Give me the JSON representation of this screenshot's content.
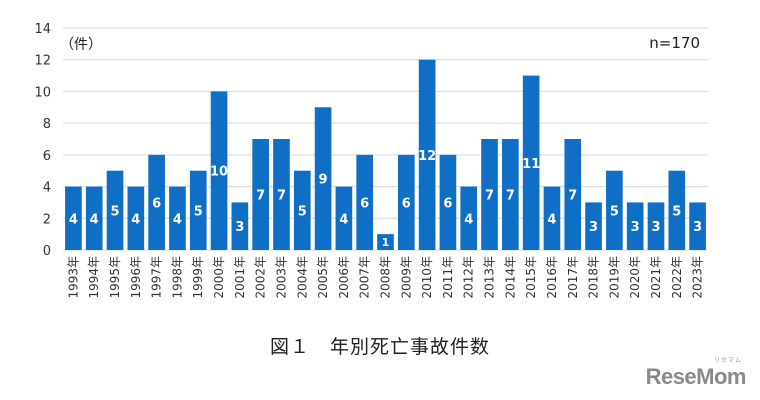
{
  "header": {
    "unit": "（件）",
    "n_note": "n=170"
  },
  "caption": "図１　年別死亡事故件数",
  "logo": {
    "text": "ReseMom",
    "sub": "リセマム"
  },
  "colors": {
    "bar": "#0f6fc6",
    "grid": "#d9d9d9",
    "axis_text": "#333333",
    "value_text": "#ffffff"
  },
  "chart_data": {
    "type": "bar",
    "title": "",
    "xlabel": "",
    "ylabel": "（件）",
    "ylim": [
      0,
      14
    ],
    "yticks": [
      0,
      2,
      4,
      6,
      8,
      10,
      12,
      14
    ],
    "grid": true,
    "categories": [
      "1993年",
      "1994年",
      "1995年",
      "1996年",
      "1997年",
      "1998年",
      "1999年",
      "2000年",
      "2001年",
      "2002年",
      "2003年",
      "2004年",
      "2005年",
      "2006年",
      "2007年",
      "2008年",
      "2009年",
      "2010年",
      "2011年",
      "2012年",
      "2013年",
      "2014年",
      "2015年",
      "2016年",
      "2017年",
      "2018年",
      "2019年",
      "2020年",
      "2021年",
      "2022年",
      "2023年"
    ],
    "values": [
      4,
      4,
      5,
      4,
      6,
      4,
      5,
      10,
      3,
      7,
      7,
      5,
      9,
      4,
      6,
      1,
      6,
      12,
      6,
      4,
      7,
      7,
      11,
      4,
      7,
      3,
      5,
      3,
      3,
      5,
      3
    ]
  }
}
